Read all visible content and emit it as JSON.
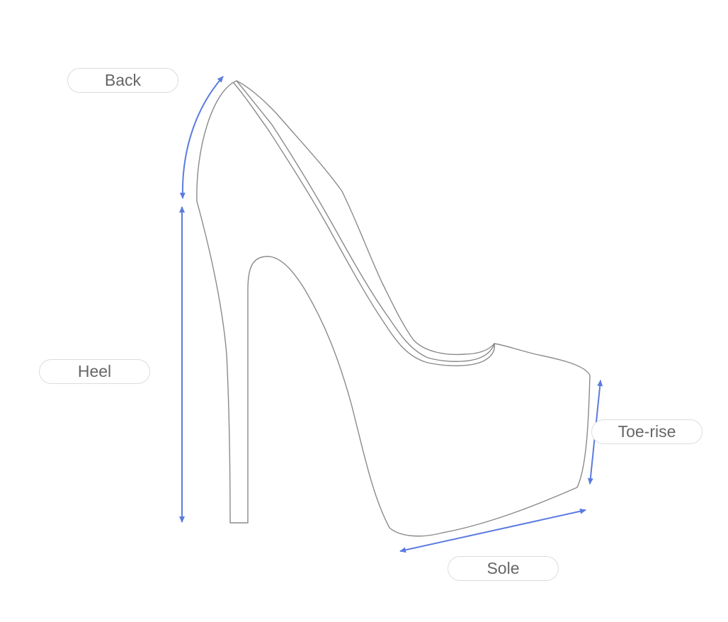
{
  "labels": {
    "back": "Back",
    "heel": "Heel",
    "toe_rise": "Toe-rise",
    "sole": "Sole"
  },
  "colors": {
    "outline": "#8a8a8a",
    "arrow": "#5b7be0",
    "label_text": "#666666",
    "label_border": "#dcdcdc",
    "background": "#ffffff"
  }
}
